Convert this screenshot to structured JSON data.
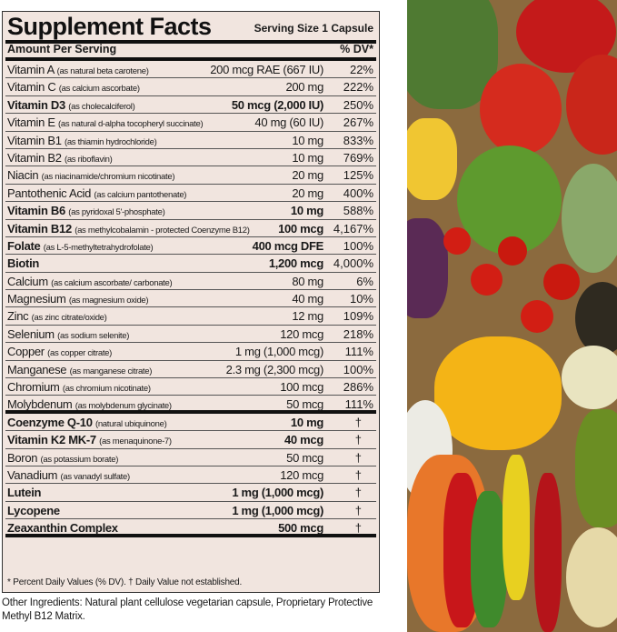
{
  "panel": {
    "title": "Supplement Facts",
    "serving": "Serving Size 1 Capsule",
    "amount_header": "Amount Per Serving",
    "dv_header": "% DV*",
    "rows": [
      {
        "name": "Vitamin A",
        "source": "(as natural beta carotene)",
        "amount": "200 mcg RAE (667 IU)",
        "dv": "22%",
        "bold": false
      },
      {
        "name": "Vitamin C",
        "source": "(as calcium ascorbate)",
        "amount": "200 mg",
        "dv": "222%",
        "bold": false
      },
      {
        "name": "Vitamin D3",
        "source": "(as cholecalciferol)",
        "amount": "50 mcg (2,000 IU)",
        "dv": "250%",
        "bold": true
      },
      {
        "name": "Vitamin E",
        "source": "(as natural d-alpha tocopheryl succinate)",
        "amount": "40 mg (60 IU)",
        "dv": "267%",
        "bold": false
      },
      {
        "name": "Vitamin B1",
        "source": "(as thiamin hydrochloride)",
        "amount": "10 mg",
        "dv": "833%",
        "bold": false
      },
      {
        "name": "Vitamin B2",
        "source": "(as riboflavin)",
        "amount": "10 mg",
        "dv": "769%",
        "bold": false
      },
      {
        "name": "Niacin",
        "source": "(as niacinamide/chromium nicotinate)",
        "amount": "20 mg",
        "dv": "125%",
        "bold": false
      },
      {
        "name": "Pantothenic Acid",
        "source": "(as calcium pantothenate)",
        "amount": "20 mg",
        "dv": "400%",
        "bold": false
      },
      {
        "name": "Vitamin B6",
        "source": "(as pyridoxal 5'-phosphate)",
        "amount": "10 mg",
        "dv": "588%",
        "bold": true
      },
      {
        "name": "Vitamin B12",
        "source": "(as methylcobalamin - protected Coenzyme B12)",
        "amount": "100 mcg",
        "dv": "4,167%",
        "bold": true
      },
      {
        "name": "Folate",
        "source": "(as L-5-methyltetrahydrofolate)",
        "amount": "400 mcg DFE",
        "dv": "100%",
        "bold": true
      },
      {
        "name": "Biotin",
        "source": "",
        "amount": "1,200 mcg",
        "dv": "4,000%",
        "bold": true
      },
      {
        "name": "Calcium",
        "source": "(as calcium ascorbate/ carbonate)",
        "amount": "80 mg",
        "dv": "6%",
        "bold": false
      },
      {
        "name": "Magnesium",
        "source": "(as magnesium oxide)",
        "amount": "40 mg",
        "dv": "10%",
        "bold": false
      },
      {
        "name": "Zinc",
        "source": "(as zinc citrate/oxide)",
        "amount": "12 mg",
        "dv": "109%",
        "bold": false
      },
      {
        "name": "Selenium",
        "source": "(as sodium selenite)",
        "amount": "120 mcg",
        "dv": "218%",
        "bold": false
      },
      {
        "name": "Copper",
        "source": "(as copper citrate)",
        "amount": "1 mg (1,000 mcg)",
        "dv": "111%",
        "bold": false
      },
      {
        "name": "Manganese",
        "source": "(as manganese citrate)",
        "amount": "2.3 mg (2,300 mcg)",
        "dv": "100%",
        "bold": false
      },
      {
        "name": "Chromium",
        "source": "(as chromium nicotinate)",
        "amount": "100 mcg",
        "dv": "286%",
        "bold": false
      },
      {
        "name": "Molybdenum",
        "source": "(as molybdenum glycinate)",
        "amount": "50 mcg",
        "dv": "111%",
        "bold": false,
        "sep": true
      },
      {
        "name": "Coenzyme Q-10",
        "source": "(natural ubiquinone)",
        "amount": "10 mg",
        "dv": "†",
        "bold": true
      },
      {
        "name": "Vitamin K2 MK-7",
        "source": "(as menaquinone-7)",
        "amount": "40 mcg",
        "dv": "†",
        "bold": true
      },
      {
        "name": "Boron",
        "source": "(as potassium borate)",
        "amount": "50 mcg",
        "dv": "†",
        "bold": false
      },
      {
        "name": "Vanadium",
        "source": "(as vanadyl sulfate)",
        "amount": "120 mcg",
        "dv": "†",
        "bold": false
      },
      {
        "name": "Lutein",
        "source": "",
        "amount": "1 mg (1,000 mcg)",
        "dv": "†",
        "bold": true
      },
      {
        "name": "Lycopene",
        "source": "",
        "amount": "1 mg (1,000 mcg)",
        "dv": "†",
        "bold": true
      },
      {
        "name": "Zeaxanthin Complex",
        "source": "",
        "amount": "500 mcg",
        "dv": "†",
        "bold": true,
        "sep": true
      }
    ],
    "footnote": "* Percent Daily Values (% DV). † Daily Value not established."
  },
  "other_ingredients": "Other Ingredients: Natural plant cellulose vegetarian capsule, Proprietary Protective Methyl B12 Matrix.",
  "colors": {
    "panel_bg": "#f1e5df"
  }
}
